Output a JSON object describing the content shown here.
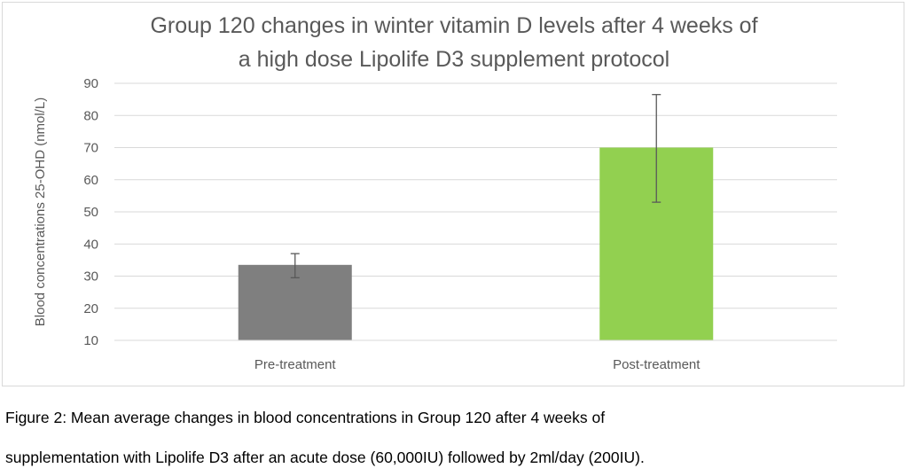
{
  "chart_data": {
    "type": "bar",
    "title_lines": [
      "Group 120 changes in winter vitamin D levels after 4 weeks of",
      "a high dose Lipolife D3 supplement protocol"
    ],
    "ylabel": "Blood concentrations 25-OHD (nmol/L)",
    "xlabel": "",
    "categories": [
      "Pre-treatment",
      "Post-treatment"
    ],
    "values": [
      33.5,
      70
    ],
    "error_low": [
      29.5,
      53
    ],
    "error_high": [
      37,
      86.5
    ],
    "colors": [
      "#7f7f7f",
      "#92d050"
    ],
    "ylim": [
      10,
      90
    ],
    "yticks": [
      "10",
      "20",
      "30",
      "40",
      "50",
      "60",
      "70",
      "80",
      "90"
    ],
    "grid": true,
    "legend": "none"
  },
  "caption": {
    "line1": "Figure 2: Mean average changes in blood concentrations in Group 120 after 4 weeks of",
    "line2": "supplementation with Lipolife D3 after an acute dose (60,000IU) followed by 2ml/day (200IU)."
  }
}
